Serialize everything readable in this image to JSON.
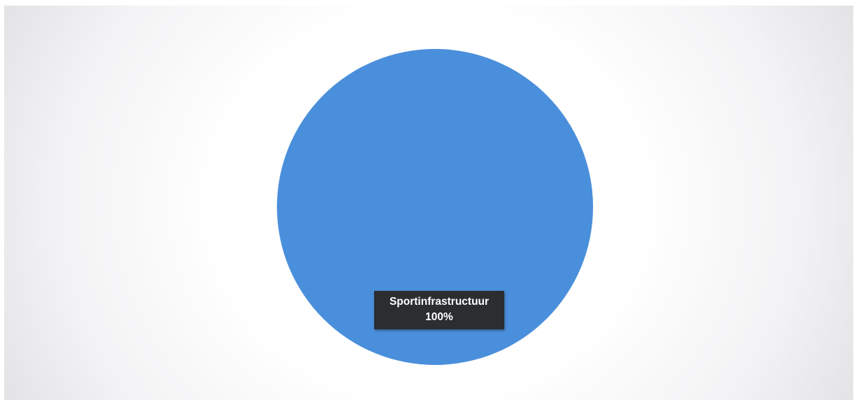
{
  "chart_data": {
    "type": "pie",
    "slices": [
      {
        "label": "Sportinfrastructuur",
        "value": 100,
        "percent_label": "100%",
        "color": "#4a8fdb"
      }
    ],
    "legend": "none",
    "title": ""
  }
}
